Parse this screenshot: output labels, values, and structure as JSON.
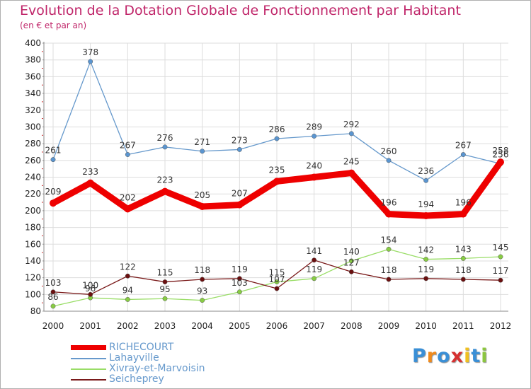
{
  "header": {
    "title": "Evolution de la Dotation Globale de Fonctionnement par Habitant",
    "subtitle": "(en € et par an)"
  },
  "logo": {
    "text": "Proxiti"
  },
  "chart_data": {
    "type": "line",
    "x": [
      "2000",
      "2001",
      "2002",
      "2003",
      "2004",
      "2005",
      "2006",
      "2007",
      "2008",
      "2009",
      "2010",
      "2011",
      "2012"
    ],
    "ylim": [
      80,
      400
    ],
    "yticks": [
      80,
      100,
      120,
      140,
      160,
      180,
      200,
      220,
      240,
      260,
      280,
      300,
      320,
      340,
      360,
      380,
      400
    ],
    "grid": true,
    "legend_position": "bottom-left",
    "series": [
      {
        "name": "RICHECOURT",
        "color": "#ee0000",
        "values": [
          209,
          233,
          202,
          223,
          205,
          207,
          235,
          240,
          245,
          196,
          194,
          196,
          258
        ]
      },
      {
        "name": "Lahayville",
        "color": "#6699cc",
        "values": [
          261,
          378,
          267,
          276,
          271,
          273,
          286,
          289,
          292,
          260,
          236,
          267,
          256
        ]
      },
      {
        "name": "Xivray-et-Marvoisin",
        "color": "#99dd66",
        "values": [
          86,
          96,
          94,
          95,
          93,
          103,
          115,
          119,
          140,
          154,
          142,
          143,
          145
        ]
      },
      {
        "name": "Seicheprey",
        "color": "#7a1a1a",
        "values": [
          103,
          100,
          122,
          115,
          118,
          119,
          107,
          141,
          127,
          118,
          119,
          118,
          117
        ]
      }
    ]
  }
}
